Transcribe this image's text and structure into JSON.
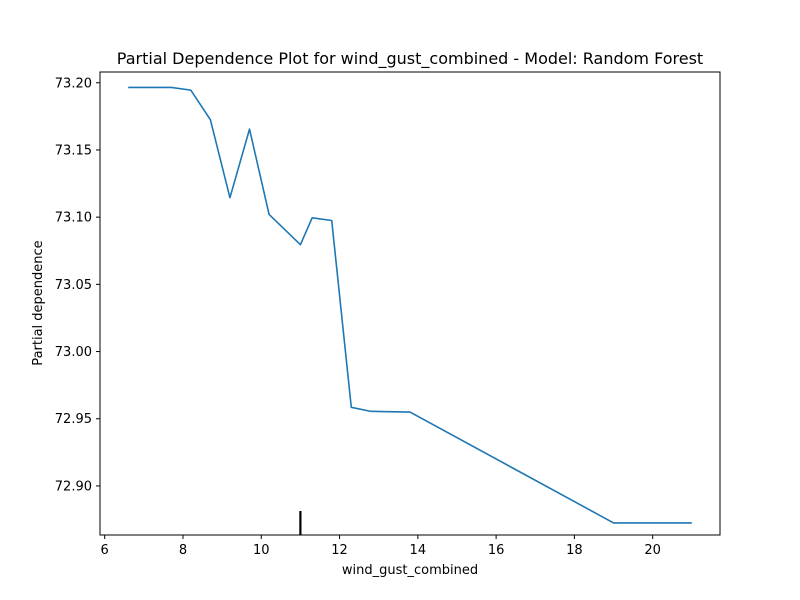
{
  "chart_data": {
    "type": "line",
    "title": "Partial Dependence Plot for wind_gust_combined - Model: Random Forest",
    "xlabel": "wind_gust_combined",
    "ylabel": "Partial dependence",
    "xlim": [
      5.88,
      21.72
    ],
    "ylim": [
      72.8635,
      73.208
    ],
    "xticks": [
      6,
      8,
      10,
      12,
      14,
      16,
      18,
      20
    ],
    "xtick_labels": [
      "6",
      "8",
      "10",
      "12",
      "14",
      "16",
      "18",
      "20"
    ],
    "yticks": [
      72.9,
      72.95,
      73.0,
      73.05,
      73.1,
      73.15,
      73.2
    ],
    "ytick_labels": [
      "72.90",
      "72.95",
      "73.00",
      "73.05",
      "73.10",
      "73.15",
      "73.20"
    ],
    "grid": false,
    "legend": "none",
    "series": [
      {
        "color": "#1f77b4",
        "x": [
          6.6,
          7.7,
          8.2,
          8.7,
          9.2,
          9.7,
          10.2,
          10.7,
          11.0,
          11.3,
          11.8,
          12.3,
          12.8,
          13.8,
          19.0,
          21.0
        ],
        "y": [
          73.1965,
          73.1965,
          73.1945,
          73.1725,
          73.1145,
          73.1655,
          73.102,
          73.088,
          73.0795,
          73.0995,
          73.0975,
          72.9585,
          72.9555,
          72.955,
          72.8725,
          72.8725
        ]
      }
    ],
    "rug": {
      "color": "#000000",
      "x": [
        11.0
      ]
    }
  }
}
